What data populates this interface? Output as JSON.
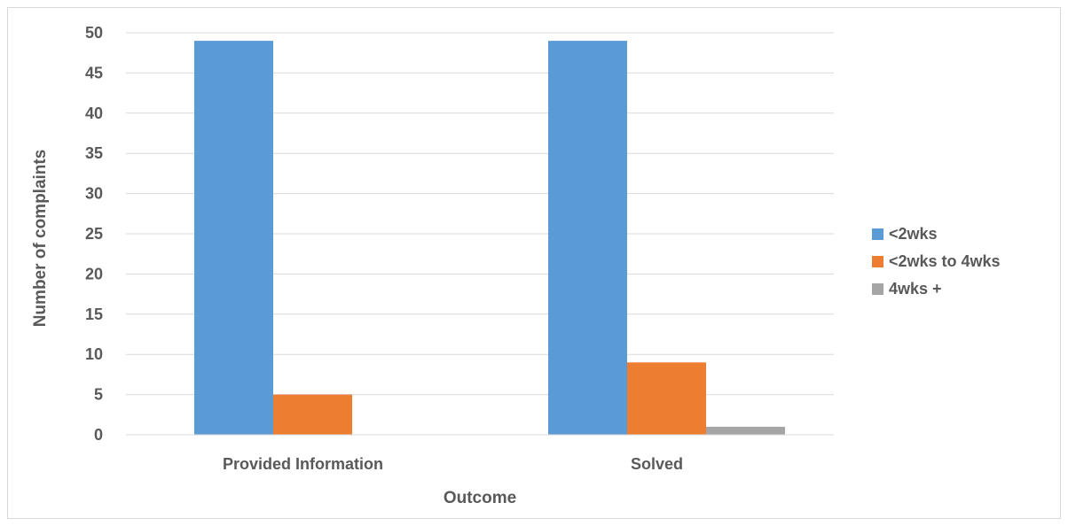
{
  "chart_data": {
    "type": "bar",
    "title": "",
    "xlabel": "Outcome",
    "ylabel": "Number of complaints",
    "categories": [
      "Provided Information",
      "Solved"
    ],
    "series": [
      {
        "name": "<2wks",
        "values": [
          49,
          49
        ],
        "color": "#5b9bd5"
      },
      {
        "name": "<2wks to 4wks",
        "values": [
          5,
          9
        ],
        "color": "#ed7d31"
      },
      {
        "name": "4wks +",
        "values": [
          0,
          1
        ],
        "color": "#a5a5a5"
      }
    ],
    "ylim": [
      0,
      50
    ],
    "yticks": [
      0,
      5,
      10,
      15,
      20,
      25,
      30,
      35,
      40,
      45,
      50
    ],
    "grid": true,
    "legend_position": "right"
  },
  "colors": {
    "gridline": "#d9d9d9",
    "axis_text": "#595959"
  }
}
